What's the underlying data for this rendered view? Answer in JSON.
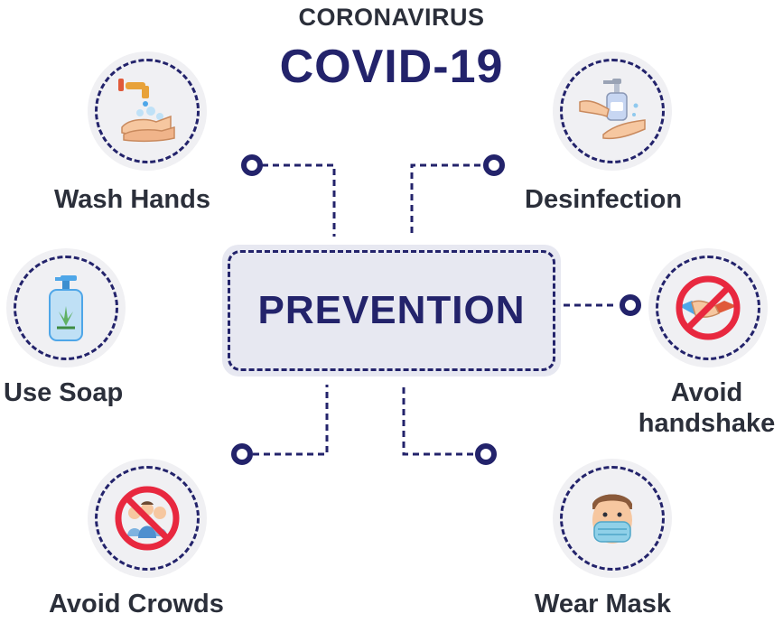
{
  "header": {
    "subtitle": "CORONAVIRUS",
    "title": "COVID-19"
  },
  "center": {
    "label": "PREVENTION"
  },
  "measures": [
    {
      "label": "Wash Hands",
      "icon": "wash-hands-icon"
    },
    {
      "label": "Desinfection",
      "icon": "sanitizer-icon"
    },
    {
      "label": "Use Soap",
      "icon": "soap-bottle-icon"
    },
    {
      "label": "Avoid",
      "label2": "handshake",
      "icon": "no-handshake-icon"
    },
    {
      "label": "Avoid Crowds",
      "icon": "no-crowds-icon"
    },
    {
      "label": "Wear Mask",
      "icon": "face-mask-icon"
    }
  ],
  "colors": {
    "navy": "#23236b",
    "text": "#2b2f3a",
    "circle_bg": "#f0f0f3",
    "box_bg": "#e7e8f1",
    "prohibit_red": "#e8283f"
  }
}
